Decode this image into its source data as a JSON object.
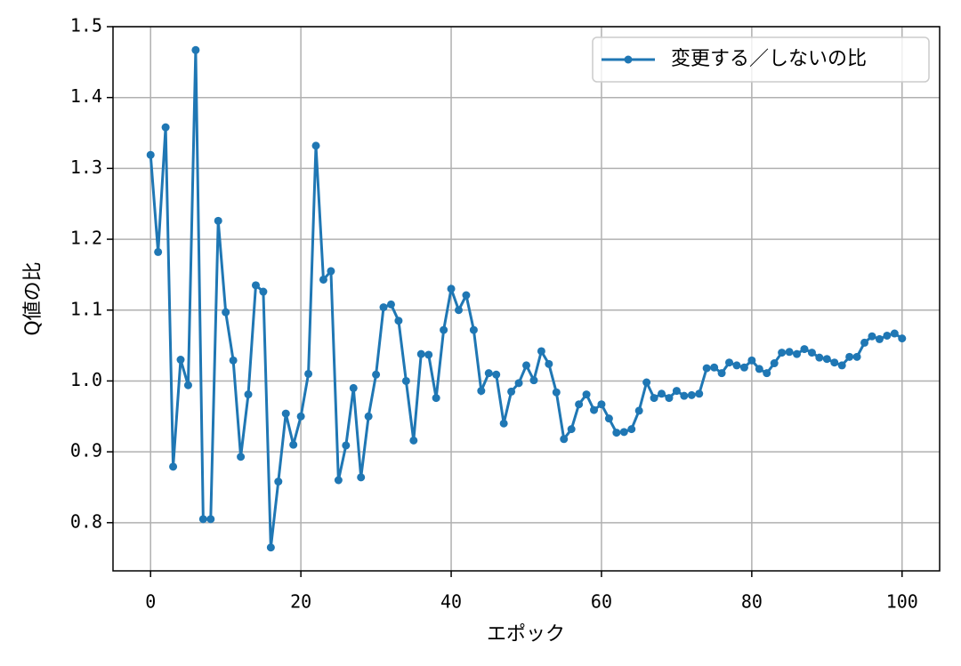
{
  "chart_data": {
    "type": "line",
    "xlabel": "エポック",
    "ylabel": "Q値の比",
    "x": [
      0,
      1,
      2,
      3,
      4,
      5,
      6,
      7,
      8,
      9,
      10,
      11,
      12,
      13,
      14,
      15,
      16,
      17,
      18,
      19,
      20,
      21,
      22,
      23,
      24,
      25,
      26,
      27,
      28,
      29,
      30,
      31,
      32,
      33,
      34,
      35,
      36,
      37,
      38,
      39,
      40,
      41,
      42,
      43,
      44,
      45,
      46,
      47,
      48,
      49,
      50,
      51,
      52,
      53,
      54,
      55,
      56,
      57,
      58,
      59,
      60,
      61,
      62,
      63,
      64,
      65,
      66,
      67,
      68,
      69,
      70,
      71,
      72,
      73,
      74,
      75,
      76,
      77,
      78,
      79,
      80,
      81,
      82,
      83,
      84,
      85,
      86,
      87,
      88,
      89,
      90,
      91,
      92,
      93,
      94,
      95,
      96,
      97,
      98,
      99,
      100
    ],
    "series": [
      {
        "name": "変更する／しないの比",
        "color": "#1f77b4",
        "values": [
          1.319,
          1.182,
          1.358,
          0.879,
          1.03,
          0.994,
          1.467,
          0.805,
          0.805,
          1.226,
          1.097,
          1.029,
          0.893,
          0.981,
          1.135,
          1.126,
          0.765,
          0.858,
          0.954,
          0.91,
          0.95,
          1.01,
          1.332,
          1.143,
          1.155,
          0.86,
          0.909,
          0.99,
          0.864,
          0.95,
          1.009,
          1.104,
          1.108,
          1.085,
          1.0,
          0.916,
          1.038,
          1.037,
          0.976,
          1.072,
          1.13,
          1.1,
          1.121,
          1.072,
          0.986,
          1.011,
          1.009,
          0.94,
          0.985,
          0.997,
          1.022,
          1.001,
          1.042,
          1.024,
          0.984,
          0.918,
          0.932,
          0.967,
          0.981,
          0.959,
          0.967,
          0.947,
          0.927,
          0.928,
          0.932,
          0.958,
          0.998,
          0.976,
          0.982,
          0.976,
          0.986,
          0.979,
          0.98,
          0.982,
          1.018,
          1.019,
          1.011,
          1.026,
          1.022,
          1.019,
          1.029,
          1.017,
          1.011,
          1.025,
          1.04,
          1.041,
          1.038,
          1.045,
          1.04,
          1.033,
          1.031,
          1.026,
          1.022,
          1.034,
          1.034,
          1.054,
          1.063,
          1.059,
          1.064,
          1.067,
          1.06
        ]
      }
    ],
    "xlim": [
      -5,
      105
    ],
    "xticks": [
      0,
      20,
      40,
      60,
      80,
      100
    ],
    "ylim": [
      0.732,
      1.5
    ],
    "yticks": [
      0.8,
      0.9,
      {
        "value": 1,
        "label": "1.0"
      },
      1.1,
      1.2,
      1.3,
      1.4,
      1.5
    ],
    "grid": true,
    "legend": "upper right"
  }
}
